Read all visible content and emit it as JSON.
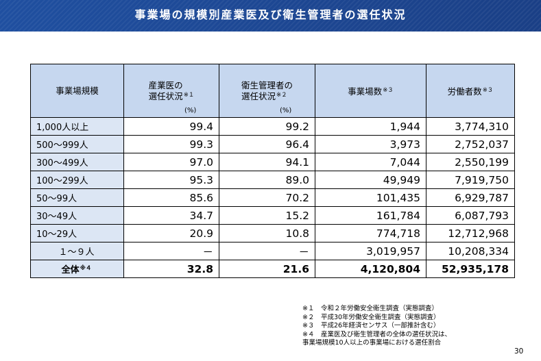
{
  "header": {
    "title": "事業場の規模別産業医及び衛生管理者の選任状況",
    "color": "#1f4fa0"
  },
  "table": {
    "columns": {
      "scale": "事業場規模",
      "doctor_line1": "産業医の",
      "doctor_line2": "選任状況",
      "doctor_note": "※１",
      "doctor_unit": "(%)",
      "manager_line1": "衛生管理者の",
      "manager_line2": "選任状況",
      "manager_note": "※２",
      "manager_unit": "(%)",
      "workplaces": "事業場数",
      "workplaces_note": "※３",
      "workers": "労働者数",
      "workers_note": "※３"
    },
    "rows": [
      {
        "scale": "1,000人以上",
        "doctor": "99.4",
        "manager": "99.2",
        "workplaces": "1,944",
        "workers": "3,774,310"
      },
      {
        "scale": "500～999人",
        "doctor": "99.3",
        "manager": "96.4",
        "workplaces": "3,973",
        "workers": "2,752,037"
      },
      {
        "scale": "300～499人",
        "doctor": "97.0",
        "manager": "94.1",
        "workplaces": "7,044",
        "workers": "2,550,199"
      },
      {
        "scale": "100～299人",
        "doctor": "95.3",
        "manager": "89.0",
        "workplaces": "49,949",
        "workers": "7,919,750"
      },
      {
        "scale": "50～99人",
        "doctor": "85.6",
        "manager": "70.2",
        "workplaces": "101,435",
        "workers": "6,929,787"
      },
      {
        "scale": "30～49人",
        "doctor": "34.7",
        "manager": "15.2",
        "workplaces": "161,784",
        "workers": "6,087,793"
      },
      {
        "scale": "10～29人",
        "doctor": "20.9",
        "manager": "10.8",
        "workplaces": "774,718",
        "workers": "12,712,968"
      },
      {
        "scale": "１～９人",
        "doctor": "－",
        "manager": "－",
        "workplaces": "3,019,957",
        "workers": "10,208,334"
      }
    ],
    "total": {
      "scale": "全体",
      "scale_note": "※４",
      "doctor": "32.8",
      "manager": "21.6",
      "workplaces": "4,120,804",
      "workers": "52,935,178"
    }
  },
  "notes": [
    "※１　令和２年労働安全衛生調査（実態調査）",
    "※２　平成30年労働安全衛生調査（実態調査）",
    "※３　平成26年経済センサス（一部推計含む）",
    "※４　産業医及び衛生管理者の全体の選任状況は、",
    "事業場規模10人以上の事業場における選任割合"
  ],
  "page_number": "30"
}
